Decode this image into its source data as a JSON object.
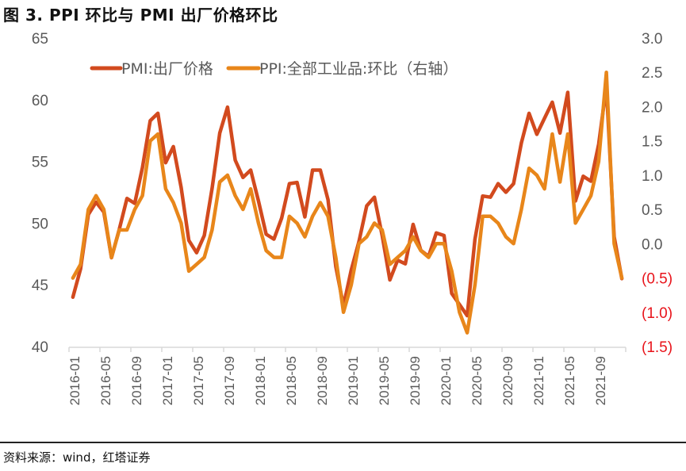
{
  "figure": {
    "title": "图 3. PPI 环比与 PMI 出厂价格环比",
    "source": "资料来源：wind，红塔证券"
  },
  "chart_data": {
    "type": "line",
    "title": "图 3. PPI 环比与 PMI 出厂价格环比",
    "xlabel": "",
    "ylabel_left": "",
    "ylabel_right": "",
    "left_axis": {
      "ylim": [
        40,
        65
      ],
      "ticks": [
        40,
        45,
        50,
        55,
        60,
        65
      ],
      "tick_labels": [
        "40",
        "45",
        "50",
        "55",
        "60",
        "65"
      ]
    },
    "right_axis": {
      "ylim": [
        -1.5,
        3.0
      ],
      "ticks": [
        -1.5,
        -1.0,
        -0.5,
        0.0,
        0.5,
        1.0,
        1.5,
        2.0,
        2.5,
        3.0
      ],
      "tick_labels": [
        "(1.5)",
        "(1.0)",
        "(0.5)",
        "0.0",
        "0.5",
        "1.0",
        "1.5",
        "2.0",
        "2.5",
        "3.0"
      ],
      "negative_label_color": "#e8141b"
    },
    "x_tick_labels": [
      "2016-01",
      "2016-05",
      "2016-09",
      "2017-01",
      "2017-05",
      "2017-09",
      "2018-01",
      "2018-05",
      "2018-09",
      "2019-01",
      "2019-05",
      "2019-09",
      "2020-01",
      "2020-05",
      "2020-09",
      "2021-01",
      "2021-05",
      "2021-09"
    ],
    "x_start": "2016-01",
    "x_end": "2021-12",
    "grid": false,
    "legend": {
      "placement": "top",
      "entries": [
        "PMI:出厂价格",
        "PPI:全部工业品:环比（右轴）"
      ]
    },
    "series": [
      {
        "name": "PMI:出厂价格",
        "axis": "left",
        "color": "#d24a1e",
        "values": [
          44.0,
          46.3,
          50.7,
          51.7,
          50.9,
          47.2,
          49.5,
          52.0,
          51.6,
          54.5,
          58.3,
          58.9,
          54.9,
          56.2,
          52.9,
          48.6,
          47.6,
          49.0,
          52.8,
          57.3,
          59.4,
          55.1,
          53.7,
          54.3,
          51.8,
          49.1,
          48.7,
          50.4,
          53.2,
          53.3,
          50.5,
          54.3,
          54.3,
          51.9,
          46.5,
          43.3,
          46.2,
          48.5,
          51.4,
          52.1,
          49.0,
          45.4,
          47.0,
          46.7,
          49.9,
          47.8,
          47.3,
          49.2,
          49.0,
          44.3,
          43.4,
          42.5,
          48.7,
          52.2,
          52.1,
          53.2,
          52.5,
          53.2,
          56.5,
          58.9,
          57.2,
          58.5,
          59.8,
          57.3,
          60.6,
          51.8,
          53.8,
          53.4,
          56.4,
          61.1,
          48.9,
          45.5
        ]
      },
      {
        "name": "PPI:全部工业品:环比（右轴）",
        "axis": "right",
        "color": "#e8861a",
        "values": [
          -0.5,
          -0.3,
          0.5,
          0.7,
          0.5,
          -0.2,
          0.2,
          0.2,
          0.5,
          0.7,
          1.5,
          1.6,
          0.8,
          0.6,
          0.3,
          -0.4,
          -0.3,
          -0.2,
          0.2,
          0.9,
          1.0,
          0.7,
          0.5,
          0.8,
          0.3,
          -0.1,
          -0.2,
          -0.2,
          0.4,
          0.3,
          0.1,
          0.4,
          0.6,
          0.4,
          -0.2,
          -1.0,
          -0.6,
          0.0,
          0.1,
          0.3,
          0.2,
          -0.3,
          -0.2,
          -0.1,
          0.1,
          -0.1,
          -0.2,
          0.0,
          0.0,
          -0.4,
          -1.0,
          -1.3,
          -0.6,
          0.4,
          0.4,
          0.3,
          0.1,
          0.0,
          0.5,
          1.1,
          1.0,
          0.8,
          1.6,
          0.9,
          1.6,
          0.3,
          0.5,
          0.7,
          1.2,
          2.5,
          0.0,
          -0.5
        ]
      }
    ]
  }
}
